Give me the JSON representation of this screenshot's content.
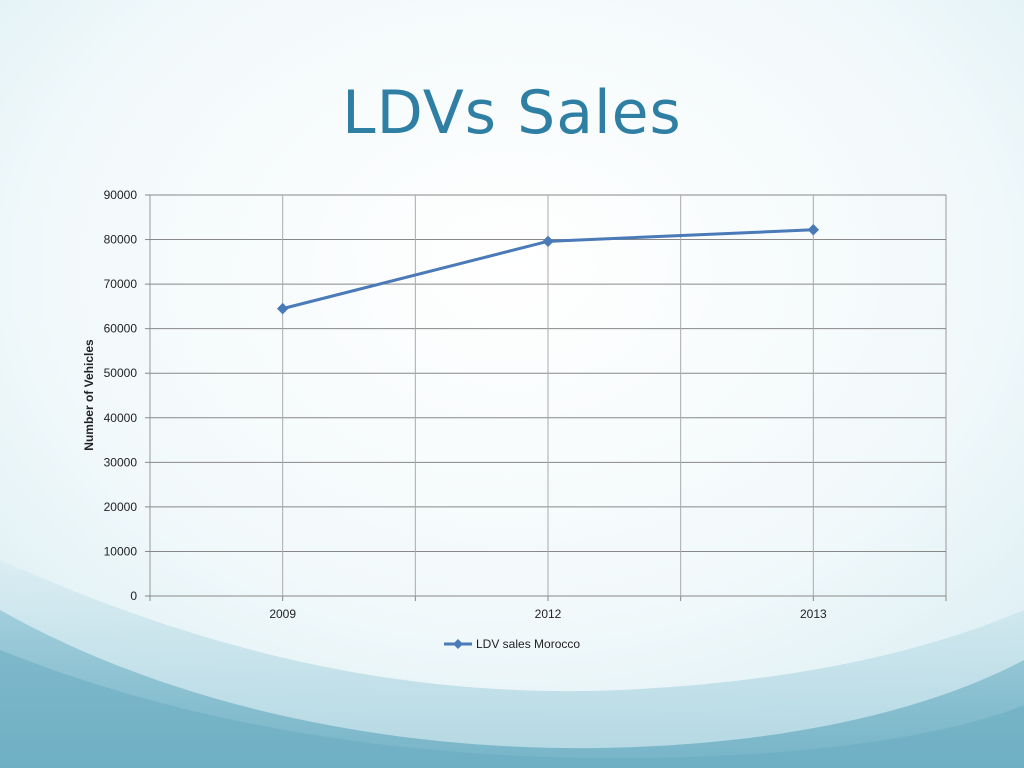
{
  "slide": {
    "title": "LDVs Sales"
  },
  "colors": {
    "title": "#2e7fa3",
    "series": "#4a7ab8",
    "grid": "#888888",
    "wave_light": "#cfe6ee",
    "wave_dark": "#7ab8cc"
  },
  "chart_data": {
    "type": "line",
    "categories": [
      "2009",
      "2012",
      "2013"
    ],
    "series": [
      {
        "name": "LDV sales Morocco",
        "values": [
          64500,
          79600,
          82200
        ],
        "marker": "diamond"
      }
    ],
    "title": "",
    "xlabel": "",
    "ylabel": "Number of Vehicles",
    "ylim": [
      0,
      90000
    ],
    "yticks": [
      "0",
      "10000",
      "20000",
      "30000",
      "40000",
      "50000",
      "60000",
      "70000",
      "80000",
      "90000"
    ],
    "grid": true,
    "legend": "bottom-center"
  }
}
